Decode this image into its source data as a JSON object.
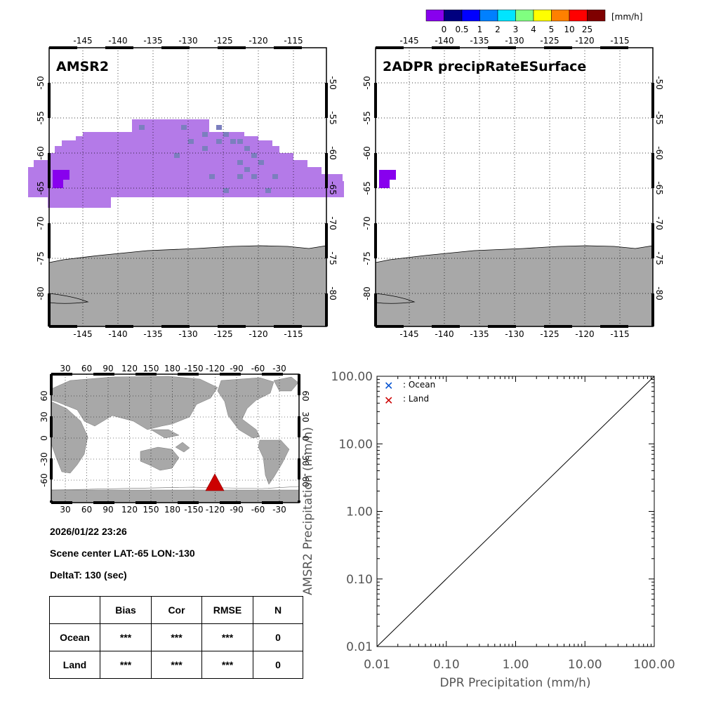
{
  "colorbar": {
    "unit": "[mm/h]",
    "labels": [
      "0",
      "0.5",
      "1",
      "2",
      "3",
      "4",
      "5",
      "10",
      "25"
    ],
    "colors": [
      "#8800ee",
      "#00007f",
      "#0000ff",
      "#0080ff",
      "#00e5ff",
      "#80ff80",
      "#ffff00",
      "#ff8000",
      "#ff0000",
      "#7f0000"
    ]
  },
  "maps": [
    {
      "title": "AMSR2",
      "lon_ticks": [
        "-145",
        "-140",
        "-135",
        "-130",
        "-125",
        "-120",
        "-115"
      ],
      "lat_ticks": [
        "-50",
        "-55",
        "-60",
        "-65",
        "-70",
        "-75",
        "-80"
      ],
      "swath_color": "#b47ae8",
      "rain_color": "#8800ee",
      "light_color": "#7b7fbe"
    },
    {
      "title": "2ADPR precipRateESurface",
      "lon_ticks": [
        "-145",
        "-140",
        "-135",
        "-130",
        "-125",
        "-120",
        "-115"
      ],
      "lat_ticks": [
        "-50",
        "-55",
        "-60",
        "-65",
        "-70",
        "-75",
        "-80"
      ],
      "rain_color": "#8800ee"
    }
  ],
  "globe": {
    "lon_ticks_top": [
      "30",
      "60",
      "90",
      "120",
      "150",
      "180",
      "-150",
      "-120",
      "-90",
      "-60",
      "-30"
    ],
    "lon_ticks_bottom": [
      "30",
      "60",
      "90",
      "120",
      "150",
      "180",
      "-150",
      "-120",
      "-90",
      "-60",
      "-30"
    ],
    "lat_ticks": [
      "60",
      "30",
      "0",
      "-30",
      "-60"
    ],
    "marker_color": "#cc0000",
    "marker_label": "scene-location"
  },
  "info": {
    "datetime": "2026/01/22 23:26",
    "scene": "Scene center LAT:-65   LON:-130",
    "deltat": "DeltaT:  130 (sec)"
  },
  "stats": {
    "headers": [
      "",
      "Bias",
      "Cor",
      "RMSE",
      "N"
    ],
    "rows": [
      [
        "Ocean",
        "***",
        "***",
        "***",
        "0"
      ],
      [
        "Land",
        "***",
        "***",
        "***",
        "0"
      ]
    ]
  },
  "chart_data": {
    "type": "scatter",
    "xlabel": "DPR Precipitation (mm/h)",
    "ylabel": "AMSR2 Precipitation (mm/h)",
    "xscale": "log",
    "yscale": "log",
    "xlim": [
      0.01,
      100
    ],
    "ylim": [
      0.01,
      100
    ],
    "x_tick_labels": [
      "0.01",
      "0.10",
      "1.00",
      "10.00",
      "100.00"
    ],
    "y_tick_labels": [
      "0.01",
      "0.10",
      "1.00",
      "10.00",
      "100.00"
    ],
    "reference_line": "1:1",
    "legend_placement": "top-left",
    "series": [
      {
        "name": ": Ocean",
        "marker": "x",
        "color": "#0050d0",
        "points": []
      },
      {
        "name": ": Land",
        "marker": "x",
        "color": "#cc0000",
        "points": []
      }
    ]
  }
}
